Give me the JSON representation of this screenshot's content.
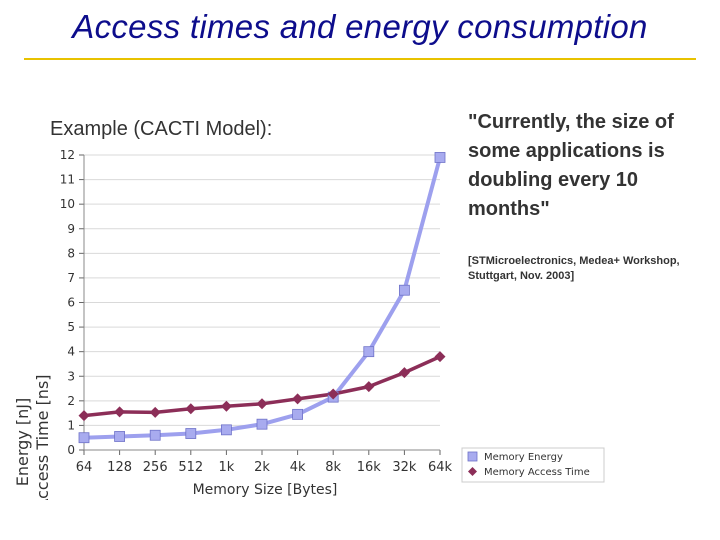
{
  "slide": {
    "title": "Access times and energy consumption",
    "example_label": "Example (CACTI Model):",
    "quote": "\"Currently, the size of some applications is doubling every 10 months\"",
    "citation": "[STMicroelectronics, Medea+ Workshop, Stuttgart, Nov. 2003]",
    "colors": {
      "title": "#0d0d8c",
      "rule": "#e8c200",
      "text": "#333333"
    }
  },
  "chart_data": {
    "type": "line",
    "title": "",
    "xlabel": "Memory Size [Bytes]",
    "ylabel_lines": [
      "Energy [nJ]",
      "Access Time [ns]"
    ],
    "categories": [
      "64",
      "128",
      "256",
      "512",
      "1k",
      "2k",
      "4k",
      "8k",
      "16k",
      "32k",
      "64k"
    ],
    "ylim": [
      0,
      12
    ],
    "yticks": [
      "0",
      "1",
      "2",
      "3",
      "4",
      "5",
      "6",
      "7",
      "8",
      "9",
      "10",
      "11",
      "12"
    ],
    "grid": true,
    "legend_position": "right",
    "series": [
      {
        "name": "Memory Energy",
        "marker": "square",
        "color": "#9da0ee",
        "marker_color": "#a8abef",
        "values": [
          0.5,
          0.55,
          0.6,
          0.67,
          0.82,
          1.05,
          1.45,
          2.15,
          4.0,
          6.5,
          11.9
        ]
      },
      {
        "name": "Memory Access Time",
        "marker": "diamond",
        "color": "#8c2e58",
        "marker_color": "#8c2e58",
        "values": [
          1.4,
          1.55,
          1.53,
          1.68,
          1.78,
          1.88,
          2.08,
          2.28,
          2.58,
          3.15,
          3.8
        ]
      }
    ]
  }
}
